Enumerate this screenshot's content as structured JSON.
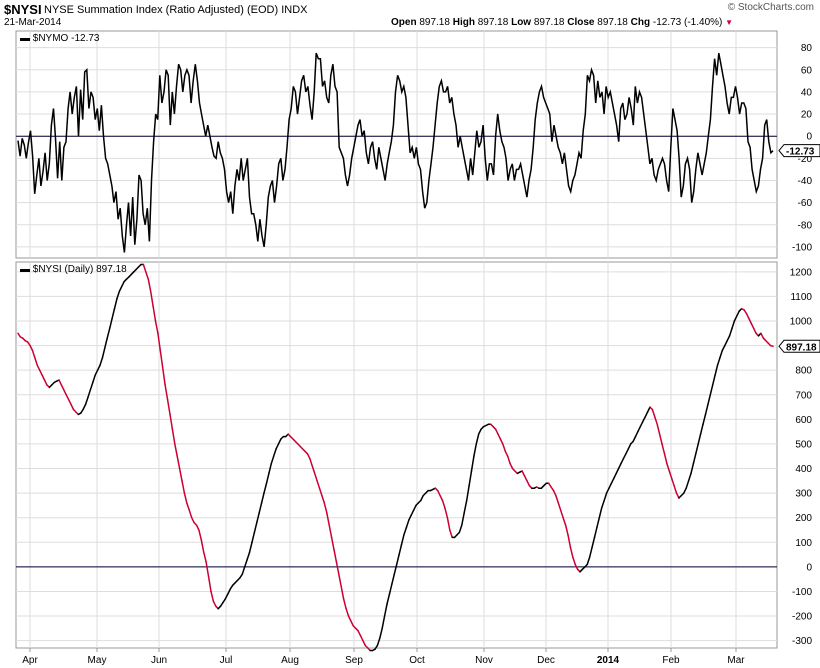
{
  "header": {
    "symbol": "$NYSI",
    "description": "NYSE Summation Index (Ratio Adjusted) (EOD)",
    "exchange": "INDX",
    "date": "21-Mar-2014",
    "watermark": "© StockCharts.com",
    "open_label": "Open",
    "open": "897.18",
    "high_label": "High",
    "high": "897.18",
    "low_label": "Low",
    "low": "897.18",
    "close_label": "Close",
    "close": "897.18",
    "chg_label": "Chg",
    "chg": "-12.73 (-1.40%)"
  },
  "colors": {
    "up": "#000000",
    "down": "#cc0033",
    "zero": "#000033",
    "grid": "#dddddd"
  },
  "chart_data": [
    {
      "type": "line",
      "title": "$NYMO -12.73",
      "last_value": "-12.73",
      "ylim": [
        -110,
        95
      ],
      "y_ticks": [
        80,
        60,
        40,
        20,
        0,
        -20,
        -40,
        -60,
        -80,
        -100
      ],
      "x_tick_labels": [
        "Apr",
        "May",
        "Jun",
        "Jul",
        "Aug",
        "Sep",
        "Oct",
        "Nov",
        "Dec",
        "2014",
        "Feb",
        "Mar"
      ],
      "series": [
        {
          "values": [
            -4,
            -18,
            -2,
            -8,
            -20,
            -6,
            5,
            -18,
            -52,
            -35,
            -20,
            -45,
            -32,
            -15,
            -40,
            -25,
            10,
            25,
            -2,
            -38,
            -5,
            -40,
            -10,
            -5,
            25,
            40,
            20,
            35,
            45,
            0,
            42,
            15,
            58,
            60,
            25,
            40,
            35,
            15,
            25,
            5,
            28,
            0,
            -20,
            -25,
            -35,
            -45,
            -60,
            -50,
            -75,
            -65,
            -90,
            -105,
            -80,
            -60,
            -90,
            -55,
            -98,
            -75,
            -35,
            -40,
            -70,
            -80,
            -65,
            -95,
            -40,
            -5,
            20,
            15,
            55,
            30,
            40,
            60,
            55,
            10,
            40,
            20,
            45,
            65,
            60,
            40,
            55,
            60,
            55,
            30,
            50,
            65,
            50,
            30,
            20,
            10,
            0,
            10,
            0,
            -10,
            -18,
            -20,
            -5,
            -15,
            -20,
            -30,
            -50,
            -60,
            -50,
            -70,
            -45,
            -30,
            -40,
            -20,
            -40,
            -30,
            -20,
            -55,
            -70,
            -70,
            -80,
            -95,
            -75,
            -90,
            -100,
            -80,
            -55,
            -45,
            -40,
            -60,
            -45,
            -25,
            -20,
            -40,
            -30,
            -10,
            15,
            25,
            45,
            40,
            20,
            35,
            50,
            55,
            40,
            45,
            28,
            15,
            40,
            75,
            70,
            70,
            45,
            50,
            35,
            30,
            55,
            65,
            45,
            40,
            -10,
            -15,
            -20,
            -35,
            -45,
            -35,
            -20,
            -10,
            0,
            10,
            15,
            0,
            5,
            -15,
            -25,
            -10,
            -5,
            -20,
            -30,
            -10,
            -20,
            -30,
            -40,
            -25,
            -15,
            -5,
            10,
            40,
            55,
            50,
            40,
            45,
            35,
            10,
            -15,
            -10,
            -20,
            -10,
            -25,
            -30,
            -50,
            -65,
            -60,
            -40,
            -25,
            -10,
            10,
            30,
            45,
            50,
            40,
            40,
            45,
            30,
            35,
            20,
            10,
            -10,
            0,
            -10,
            -20,
            -30,
            -40,
            -20,
            -35,
            -15,
            5,
            -10,
            -5,
            10,
            -20,
            -40,
            -25,
            -25,
            -35,
            0,
            20,
            5,
            -5,
            -10,
            -20,
            -40,
            -30,
            -25,
            -40,
            -30,
            -30,
            -25,
            -35,
            -45,
            -55,
            -40,
            -30,
            -10,
            15,
            30,
            40,
            45,
            35,
            30,
            25,
            20,
            -5,
            10,
            0,
            -10,
            -15,
            -25,
            -15,
            -30,
            -45,
            -50,
            -40,
            -35,
            -25,
            -15,
            -20,
            5,
            20,
            55,
            50,
            60,
            55,
            30,
            50,
            35,
            40,
            20,
            45,
            35,
            40,
            30,
            20,
            10,
            -5,
            25,
            30,
            15,
            20,
            35,
            25,
            10,
            45,
            30,
            40,
            35,
            20,
            5,
            -10,
            -25,
            -20,
            -35,
            -40,
            -30,
            -25,
            -20,
            -25,
            -40,
            -50,
            -10,
            25,
            15,
            5,
            -20,
            -55,
            -45,
            -25,
            -20,
            -30,
            -60,
            -50,
            -30,
            -15,
            -25,
            -35,
            -25,
            -15,
            0,
            15,
            45,
            70,
            55,
            75,
            65,
            55,
            45,
            30,
            20,
            35,
            35,
            45,
            35,
            20,
            30,
            30,
            25,
            -5,
            -10,
            -30,
            -40,
            -50,
            -45,
            -30,
            -20,
            10,
            15,
            -5,
            -15,
            -13
          ]
        }
      ]
    },
    {
      "type": "line",
      "title": "$NYSI (Daily) 897.18",
      "last_value": "897.18",
      "ylim": [
        -330,
        1240
      ],
      "y_ticks": [
        1200,
        1100,
        1000,
        900,
        800,
        700,
        600,
        500,
        400,
        300,
        200,
        100,
        0,
        -100,
        -200,
        -300
      ],
      "x_tick_labels": [
        "Apr",
        "May",
        "Jun",
        "Jul",
        "Aug",
        "Sep",
        "Oct",
        "Nov",
        "Dec",
        "2014",
        "Feb",
        "Mar"
      ],
      "series": [
        {
          "values": [
            950,
            935,
            930,
            920,
            915,
            900,
            880,
            850,
            820,
            800,
            780,
            760,
            740,
            730,
            740,
            750,
            755,
            760,
            740,
            720,
            700,
            680,
            660,
            640,
            630,
            620,
            625,
            640,
            660,
            690,
            720,
            750,
            780,
            800,
            820,
            850,
            890,
            930,
            970,
            1010,
            1050,
            1090,
            1120,
            1140,
            1160,
            1170,
            1180,
            1190,
            1200,
            1210,
            1220,
            1230,
            1230,
            1200,
            1170,
            1120,
            1060,
            1000,
            950,
            880,
            810,
            740,
            680,
            620,
            560,
            500,
            450,
            400,
            350,
            300,
            260,
            230,
            200,
            180,
            170,
            150,
            110,
            60,
            20,
            -40,
            -100,
            -140,
            -160,
            -170,
            -160,
            -145,
            -130,
            -110,
            -90,
            -75,
            -65,
            -55,
            -45,
            -30,
            0,
            30,
            60,
            100,
            140,
            180,
            220,
            260,
            300,
            340,
            380,
            420,
            450,
            480,
            500,
            520,
            530,
            530,
            540,
            530,
            520,
            510,
            500,
            490,
            480,
            470,
            460,
            440,
            410,
            380,
            350,
            320,
            290,
            260,
            220,
            170,
            120,
            70,
            20,
            -30,
            -80,
            -130,
            -170,
            -200,
            -220,
            -240,
            -250,
            -260,
            -280,
            -300,
            -320,
            -330,
            -340,
            -340,
            -335,
            -320,
            -290,
            -250,
            -200,
            -150,
            -110,
            -70,
            -30,
            10,
            50,
            90,
            130,
            160,
            190,
            210,
            230,
            250,
            260,
            270,
            290,
            300,
            310,
            310,
            315,
            320,
            310,
            290,
            270,
            240,
            200,
            150,
            120,
            120,
            130,
            140,
            170,
            220,
            270,
            330,
            390,
            450,
            500,
            540,
            560,
            570,
            575,
            580,
            580,
            570,
            560,
            540,
            520,
            500,
            470,
            450,
            420,
            400,
            390,
            380,
            385,
            390,
            370,
            350,
            330,
            320,
            320,
            325,
            320,
            320,
            330,
            340,
            340,
            325,
            310,
            290,
            260,
            230,
            200,
            170,
            130,
            80,
            40,
            10,
            -10,
            -20,
            -10,
            0,
            10,
            40,
            80,
            120,
            160,
            200,
            240,
            270,
            300,
            320,
            340,
            360,
            380,
            400,
            420,
            440,
            460,
            480,
            500,
            510,
            530,
            550,
            570,
            590,
            610,
            630,
            650,
            640,
            610,
            580,
            540,
            500,
            460,
            420,
            390,
            360,
            330,
            300,
            280,
            290,
            300,
            320,
            350,
            380,
            420,
            460,
            500,
            540,
            580,
            620,
            660,
            700,
            740,
            780,
            820,
            850,
            880,
            900,
            920,
            940,
            970,
            1000,
            1020,
            1040,
            1050,
            1045,
            1030,
            1010,
            990,
            970,
            950,
            940,
            950,
            930,
            920,
            910,
            900,
            897.18
          ]
        }
      ]
    }
  ]
}
